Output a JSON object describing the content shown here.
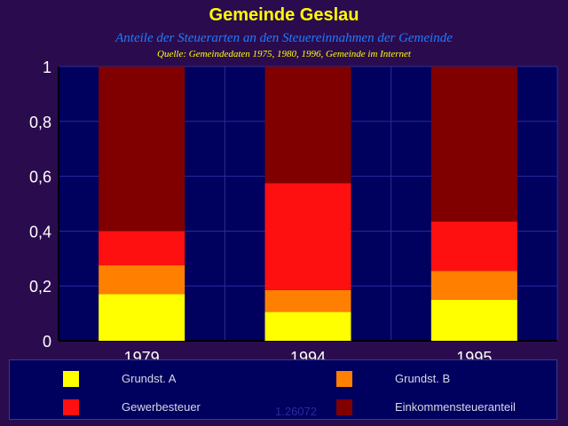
{
  "chart_data": {
    "type": "bar",
    "stacked": true,
    "title": "Gemeinde Geslau",
    "subtitle": "Anteile der Steuerarten an den Steuereinnahmen der Gemeinde",
    "source": "Quelle: Gemeindedaten 1975, 1980, 1996, Gemeinde im Internet",
    "categories": [
      "1979",
      "1994",
      "1995"
    ],
    "ylim": [
      0,
      1
    ],
    "yticks": [
      "0",
      "0,2",
      "0,4",
      "0,6",
      "0,8",
      "1"
    ],
    "grid": true,
    "legend_position": "bottom",
    "series": [
      {
        "name": "Grundst. A",
        "color": "#ffff00",
        "values": [
          0.17,
          0.105,
          0.15
        ]
      },
      {
        "name": "Grundst. B",
        "color": "#ff8000",
        "values": [
          0.105,
          0.08,
          0.105
        ]
      },
      {
        "name": "Gewerbesteuer",
        "color": "#ff1010",
        "values": [
          0.125,
          0.39,
          0.18
        ]
      },
      {
        "name": "Einkommensteueranteil",
        "color": "#800000",
        "values": [
          0.6,
          0.425,
          0.565
        ]
      }
    ]
  },
  "watermark": "1.26072"
}
